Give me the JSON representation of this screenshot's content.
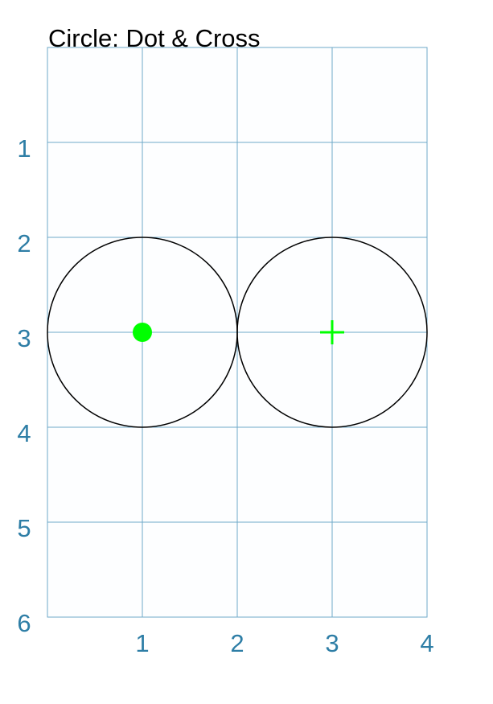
{
  "title": "Circle: Dot & Cross",
  "colors": {
    "background": "#ffffff",
    "plot_background": "#fdfeff",
    "grid": "#6fa9c8",
    "tick_label": "#2e7ea6",
    "circle_stroke": "#000000",
    "marker": "#00ff00"
  },
  "grid": {
    "x_range": [
      0,
      4
    ],
    "y_range": [
      0,
      6
    ],
    "x_ticks": [
      "1",
      "2",
      "3",
      "4"
    ],
    "y_ticks": [
      "1",
      "2",
      "3",
      "4",
      "5",
      "6"
    ]
  },
  "shapes": [
    {
      "name": "circle-dot",
      "cx": 1,
      "cy": 3,
      "r": 1,
      "marker": "dot"
    },
    {
      "name": "circle-cross",
      "cx": 3,
      "cy": 3,
      "r": 1,
      "marker": "cross"
    }
  ]
}
